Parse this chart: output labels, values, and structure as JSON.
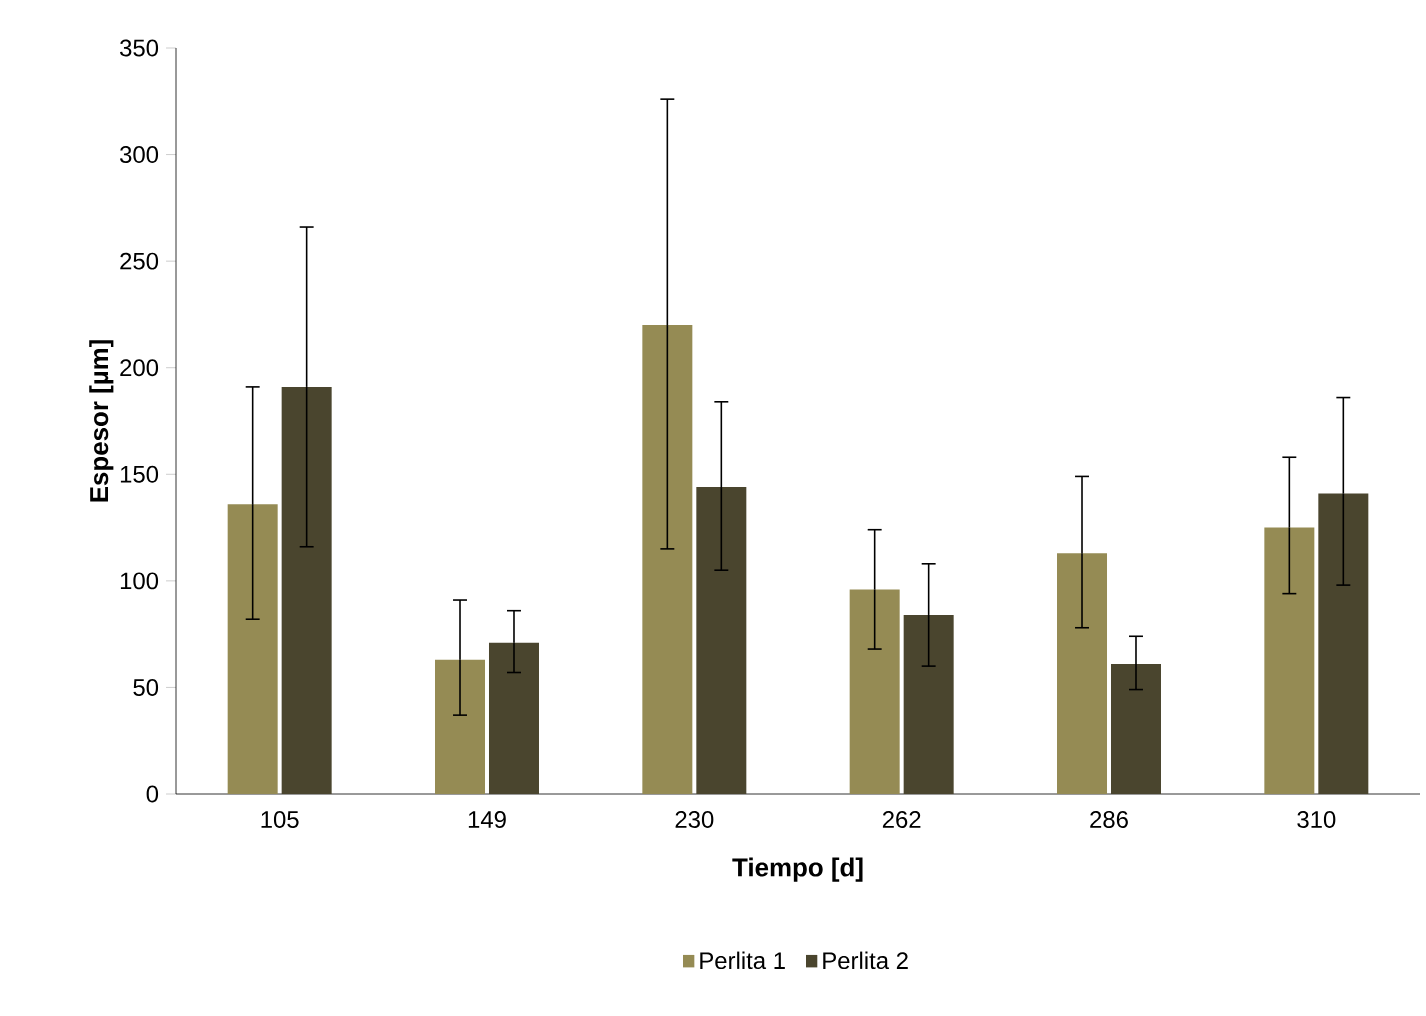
{
  "chart_data": {
    "type": "bar",
    "xlabel": "Tiempo [d]",
    "ylabel": "Espesor [µm]",
    "categories": [
      "105",
      "149",
      "230",
      "262",
      "286",
      "310"
    ],
    "series": [
      {
        "name": "Perlita 1",
        "color": "#958b54",
        "values": [
          136,
          63,
          220,
          96,
          113,
          125
        ],
        "errors": [
          [
            82,
            191
          ],
          [
            37,
            91
          ],
          [
            115,
            326
          ],
          [
            68,
            124
          ],
          [
            78,
            149
          ],
          [
            94,
            158
          ]
        ]
      },
      {
        "name": "Perlita 2",
        "color": "#4a452e",
        "values": [
          191,
          71,
          144,
          84,
          61,
          141
        ],
        "errors": [
          [
            116,
            266
          ],
          [
            57,
            86
          ],
          [
            105,
            184
          ],
          [
            60,
            108
          ],
          [
            49,
            74
          ],
          [
            98,
            186
          ]
        ]
      }
    ],
    "ylim": [
      0,
      350
    ],
    "yticks": [
      0,
      50,
      100,
      150,
      200,
      250,
      300,
      350
    ],
    "grid": false,
    "legend": "bottom"
  }
}
